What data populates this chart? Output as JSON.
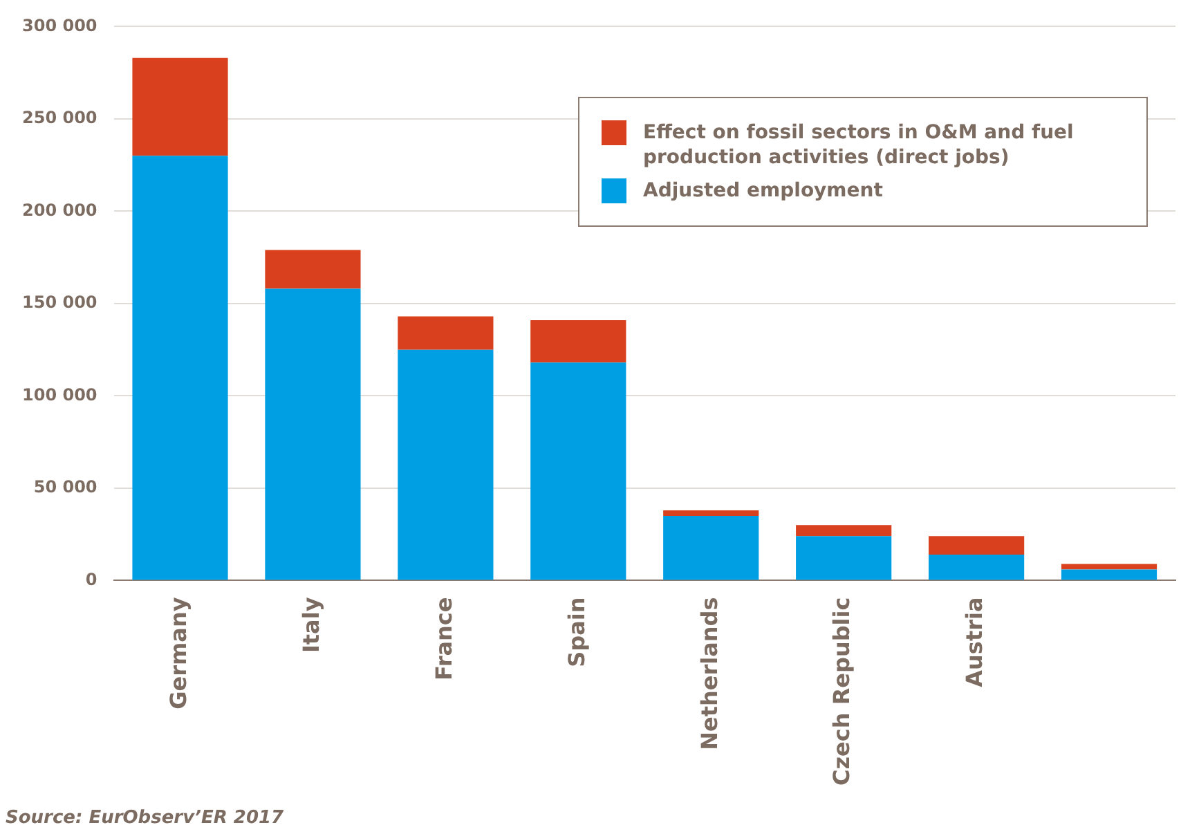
{
  "chart_data": {
    "type": "bar",
    "stacked": true,
    "categories": [
      "Germany",
      "Italy",
      "France",
      "Spain",
      "Netherlands",
      "Czech Republic",
      "Austria",
      null
    ],
    "series": [
      {
        "name": "Adjusted employment",
        "color": "#009fe3",
        "values": [
          230000,
          158000,
          125000,
          118000,
          35000,
          24000,
          14000,
          6000
        ]
      },
      {
        "name": "Effect on fossil sectors in O&M and fuel production activities (direct jobs)",
        "color": "#d9411e",
        "values": [
          53000,
          21000,
          18000,
          23000,
          3000,
          6000,
          10000,
          3000
        ]
      }
    ],
    "ylim": [
      0,
      300000
    ],
    "yticks": [
      {
        "value": 0,
        "label": "0"
      },
      {
        "value": 50000,
        "label": "50 000"
      },
      {
        "value": 100000,
        "label": "100 000"
      },
      {
        "value": 150000,
        "label": "150 000"
      },
      {
        "value": 200000,
        "label": "200 000"
      },
      {
        "value": 250000,
        "label": "250 000"
      },
      {
        "value": 300000,
        "label": "300 000"
      }
    ],
    "grid": "y",
    "legend": "top right",
    "annotations": [
      "Source: EurObserv’ER 2017"
    ]
  }
}
